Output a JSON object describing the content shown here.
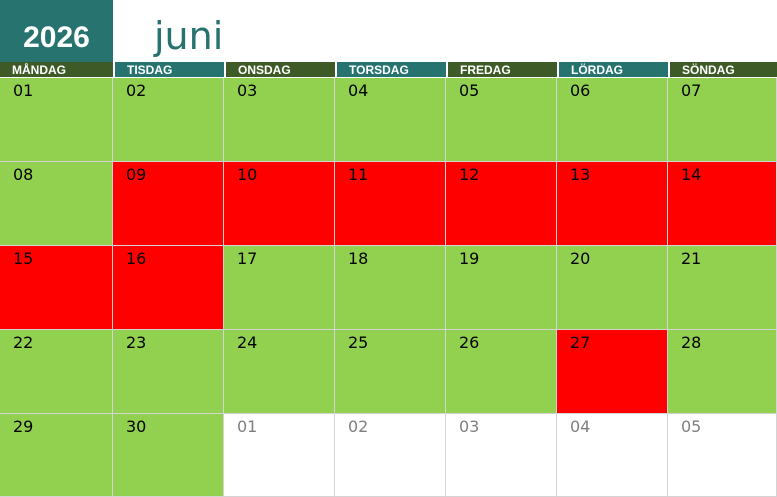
{
  "header": {
    "year": "2026",
    "month": "juni"
  },
  "weekdays": [
    {
      "label": "MÅNDAG",
      "color": "#3d5a27"
    },
    {
      "label": "TISDAG",
      "color": "#27736f"
    },
    {
      "label": "ONSDAG",
      "color": "#3d5a27"
    },
    {
      "label": "TORSDAG",
      "color": "#27736f"
    },
    {
      "label": "FREDAG",
      "color": "#3d5a27"
    },
    {
      "label": "LÖRDAG",
      "color": "#27736f"
    },
    {
      "label": "SÖNDAG",
      "color": "#3d5a27"
    }
  ],
  "weeks": [
    [
      {
        "day": "01",
        "color": "#92d050"
      },
      {
        "day": "02",
        "color": "#92d050"
      },
      {
        "day": "03",
        "color": "#92d050"
      },
      {
        "day": "04",
        "color": "#92d050"
      },
      {
        "day": "05",
        "color": "#92d050"
      },
      {
        "day": "06",
        "color": "#92d050"
      },
      {
        "day": "07",
        "color": "#92d050"
      }
    ],
    [
      {
        "day": "08",
        "color": "#92d050"
      },
      {
        "day": "09",
        "color": "#ff0000"
      },
      {
        "day": "10",
        "color": "#ff0000"
      },
      {
        "day": "11",
        "color": "#ff0000"
      },
      {
        "day": "12",
        "color": "#ff0000"
      },
      {
        "day": "13",
        "color": "#ff0000"
      },
      {
        "day": "14",
        "color": "#ff0000"
      }
    ],
    [
      {
        "day": "15",
        "color": "#ff0000"
      },
      {
        "day": "16",
        "color": "#ff0000"
      },
      {
        "day": "17",
        "color": "#92d050"
      },
      {
        "day": "18",
        "color": "#92d050"
      },
      {
        "day": "19",
        "color": "#92d050"
      },
      {
        "day": "20",
        "color": "#92d050"
      },
      {
        "day": "21",
        "color": "#92d050"
      }
    ],
    [
      {
        "day": "22",
        "color": "#92d050"
      },
      {
        "day": "23",
        "color": "#92d050"
      },
      {
        "day": "24",
        "color": "#92d050"
      },
      {
        "day": "25",
        "color": "#92d050"
      },
      {
        "day": "26",
        "color": "#92d050"
      },
      {
        "day": "27",
        "color": "#ff0000"
      },
      {
        "day": "28",
        "color": "#92d050"
      }
    ],
    [
      {
        "day": "29",
        "color": "#92d050"
      },
      {
        "day": "30",
        "color": "#92d050"
      },
      {
        "day": "01",
        "color": "#ffffff",
        "outside_month": true
      },
      {
        "day": "02",
        "color": "#ffffff",
        "outside_month": true
      },
      {
        "day": "03",
        "color": "#ffffff",
        "outside_month": true
      },
      {
        "day": "04",
        "color": "#ffffff",
        "outside_month": true
      },
      {
        "day": "05",
        "color": "#ffffff",
        "outside_month": true
      }
    ]
  ]
}
